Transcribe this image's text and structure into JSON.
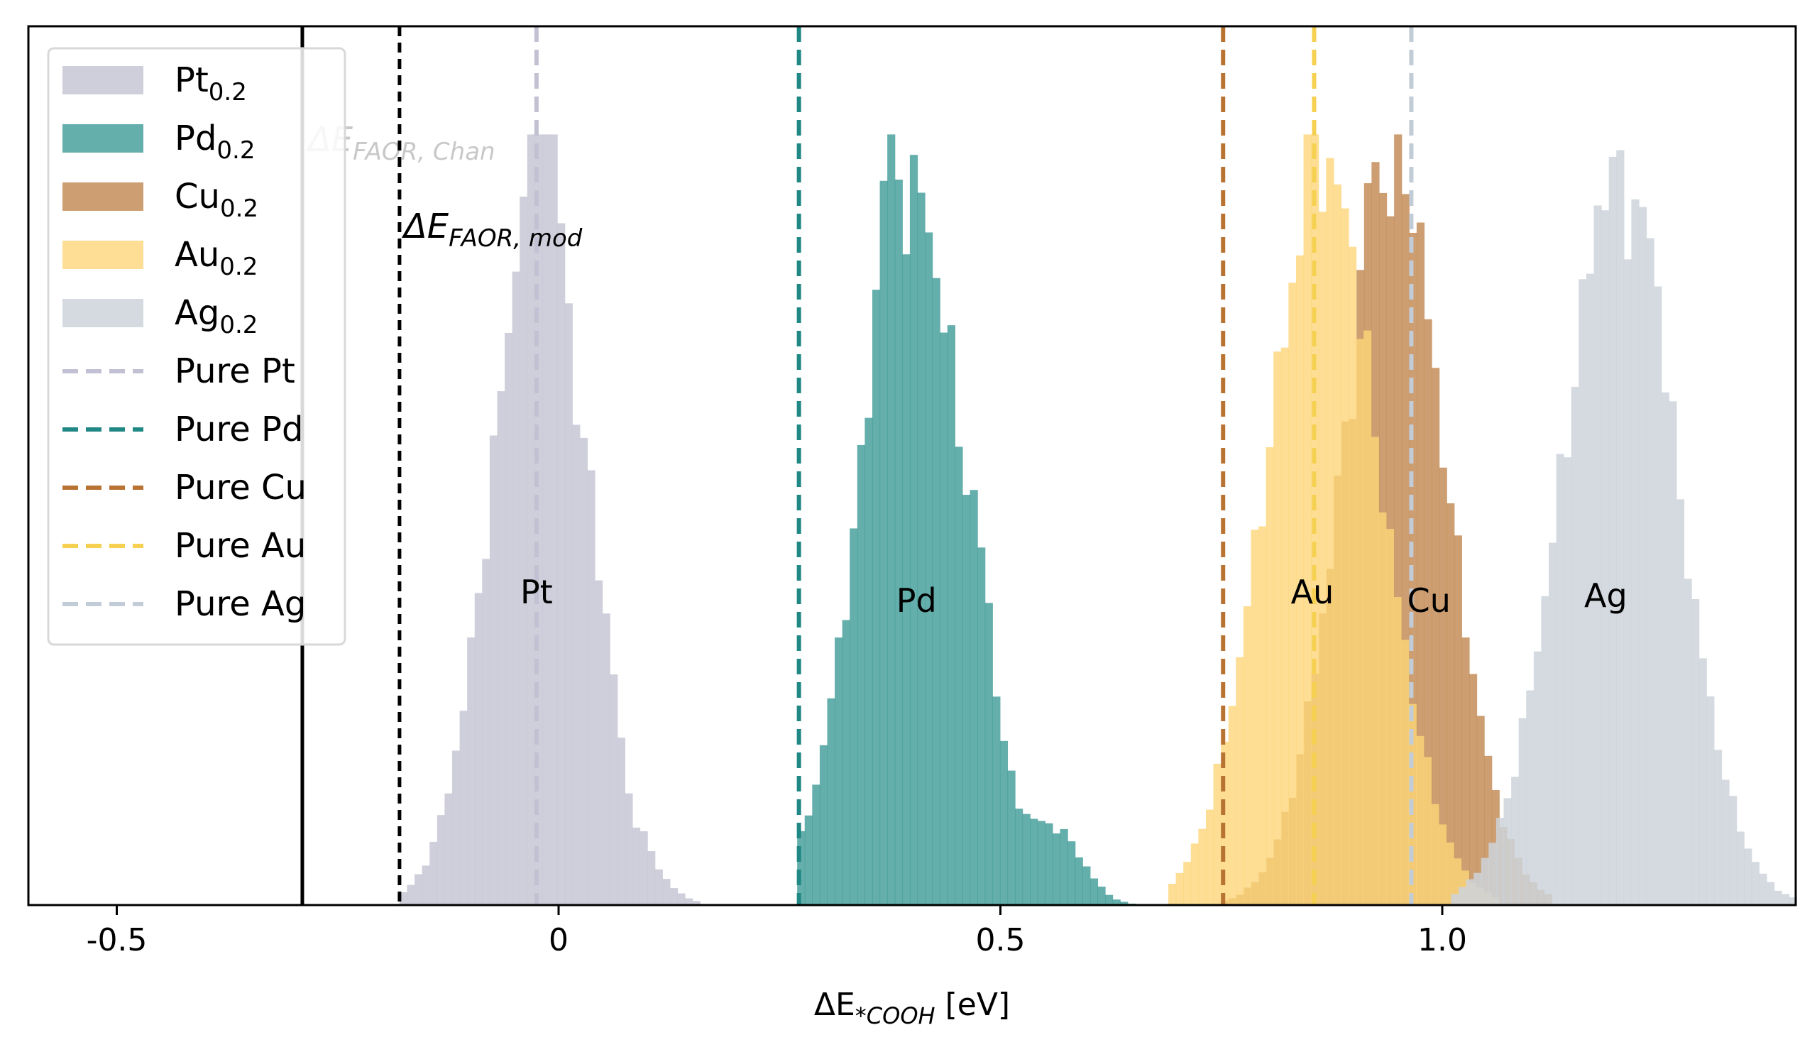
{
  "chart_data": {
    "type": "histogram",
    "xlabel_prefix": "ΔE",
    "xlabel_sub": "*COOH",
    "xlabel_unit": "[eV]",
    "xlim": [
      -0.6,
      1.4
    ],
    "xticks": [
      {
        "value": -0.5,
        "label": "-0.5"
      },
      {
        "value": 0,
        "label": "0"
      },
      {
        "value": 0.5,
        "label": "0.5"
      },
      {
        "value": 1.0,
        "label": "1.0"
      }
    ],
    "yticks_shown": false,
    "legend_position": "upper-left",
    "series": [
      {
        "name": "Pt",
        "sub": "0.2",
        "color": "#c7c7d6",
        "opacity": 0.85,
        "peak_label": "Pt",
        "label_x": -0.025,
        "pure_value": -0.025,
        "pure_color": "#c2c1d3",
        "mean": -0.02,
        "sd": 0.055,
        "bins": [
          -0.18,
          0.16
        ],
        "bumps": [
          [
            -0.02,
            0.015,
            0.18
          ],
          [
            0.02,
            0.01,
            -0.06
          ],
          [
            0.08,
            0.01,
            -0.04
          ]
        ]
      },
      {
        "name": "Pd",
        "sub": "0.2",
        "color": "#3d9a96",
        "opacity": 0.8,
        "peak_label": "Pd",
        "label_x": 0.405,
        "pure_value": 0.272,
        "pure_color": "#1f8784",
        "mean": 0.4,
        "sd": 0.058,
        "bins": [
          0.27,
          0.645
        ],
        "bumps": [
          [
            0.565,
            0.03,
            0.09
          ],
          [
            0.48,
            0.012,
            0.1
          ],
          [
            0.37,
            0.008,
            0.2
          ]
        ]
      },
      {
        "name": "Cu",
        "sub": "0.2",
        "color": "#c48d58",
        "opacity": 0.85,
        "peak_label": "Cu",
        "label_x": 0.985,
        "pure_value": 0.752,
        "pure_color": "#b87333",
        "mean": 0.945,
        "sd": 0.06,
        "bins": [
          0.75,
          1.12
        ],
        "bumps": [
          [
            0.92,
            0.008,
            0.12
          ],
          [
            0.965,
            0.01,
            0.06
          ]
        ]
      },
      {
        "name": "Au",
        "sub": "0.2",
        "color": "#fcd679",
        "opacity": 0.8,
        "peak_label": "Au",
        "label_x": 0.853,
        "pure_value": 0.855,
        "pure_color": "#f6d151",
        "mean": 0.865,
        "sd": 0.065,
        "bins": [
          0.69,
          1.06
        ],
        "bumps": [
          [
            0.855,
            0.01,
            0.1
          ],
          [
            0.895,
            0.008,
            0.06
          ]
        ]
      },
      {
        "name": "Ag",
        "sub": "0.2",
        "color": "#cdd3db",
        "opacity": 0.85,
        "peak_label": "Ag",
        "label_x": 1.185,
        "pure_value": 0.965,
        "pure_color": "#c2ccd6",
        "mean": 1.2,
        "sd": 0.065,
        "bins": [
          1.01,
          1.395
        ],
        "bumps": [
          [
            1.24,
            0.01,
            0.08
          ],
          [
            1.18,
            0.01,
            0.05
          ]
        ]
      }
    ],
    "pure_prefix": "Pure",
    "reference_lines": [
      {
        "name": "ΔE_FAOR,Chan",
        "label_main": "ΔE",
        "label_sub": "FAOR, Chan",
        "value": -0.29,
        "style": "solid",
        "color": "#000000",
        "label_color": "#c8c8c8"
      },
      {
        "name": "ΔE_FAOR,mod",
        "label_main": "ΔE",
        "label_sub": "FAOR, mod",
        "value": -0.18,
        "style": "dashed",
        "color": "#000000",
        "label_color": "#000000"
      }
    ]
  }
}
